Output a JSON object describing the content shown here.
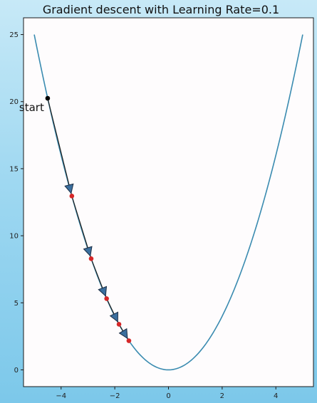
{
  "chart_data": {
    "type": "line",
    "title": "Gradient descent with Learning Rate=0.1",
    "xlabel": "",
    "ylabel": "",
    "xlim": [
      -5.4,
      5.4
    ],
    "ylim": [
      -1.25,
      26.25
    ],
    "xticks": [
      -4,
      -2,
      0,
      2,
      4
    ],
    "yticks": [
      0,
      5,
      10,
      15,
      20,
      25
    ],
    "grid": false,
    "legend": "none",
    "series": [
      {
        "kind": "curve",
        "function": "y = x^2",
        "x_range": [
          -5,
          5
        ],
        "color": "#3a8bb0"
      },
      {
        "kind": "descent_points",
        "x": [
          -4.5,
          -3.6,
          -2.88,
          -2.304,
          -1.843,
          -1.475
        ],
        "y": [
          20.25,
          12.96,
          8.29,
          5.31,
          3.4,
          2.17
        ],
        "start_color": "#000000",
        "point_color": "#d62728",
        "arrow_color": "#3b6f9e"
      }
    ],
    "annotations": [
      {
        "text": "start",
        "x": -4.5,
        "y": 20.25
      }
    ]
  }
}
